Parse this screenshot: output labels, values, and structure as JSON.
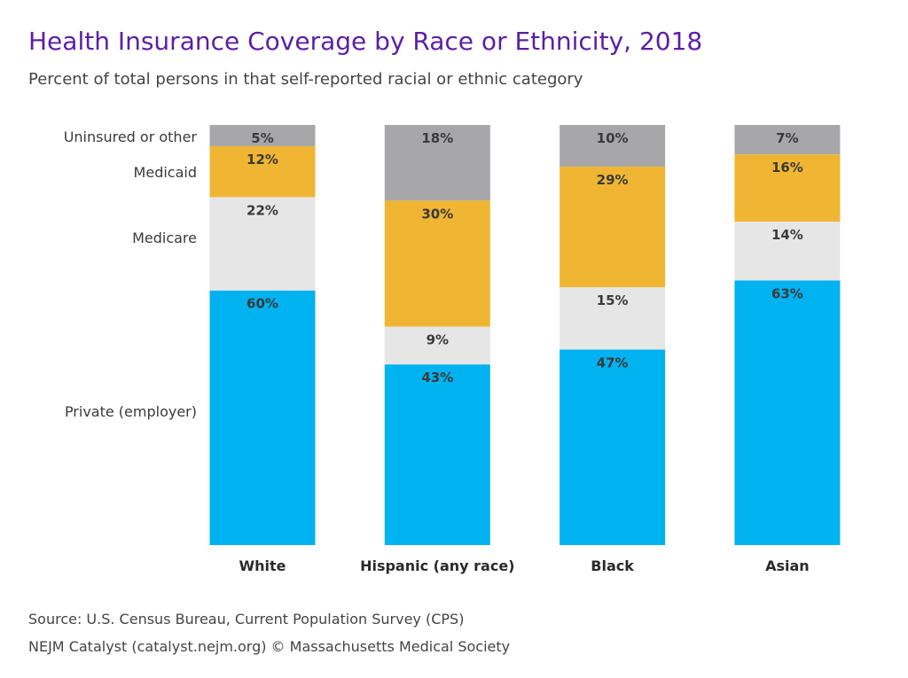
{
  "header": {
    "title": "Health Insurance Coverage by Race or Ethnicity, 2018",
    "subtitle": "Percent of total persons in that self-reported racial or ethnic category"
  },
  "footer": {
    "source": "Source: U.S. Census Bureau, Current Population Survey (CPS)",
    "credit": "NEJM Catalyst (catalyst.nejm.org) © Massachusetts Medical Society"
  },
  "chart_data": {
    "type": "bar",
    "stacked": true,
    "title": "Health Insurance Coverage by Race or Ethnicity, 2018",
    "subtitle": "Percent of total persons in that self-reported racial or ethnic category",
    "categories": [
      "White",
      "Hispanic (any race)",
      "Black",
      "Asian"
    ],
    "series": [
      {
        "name": "Private (employer)",
        "color": "#00b2f0",
        "values": [
          60,
          43,
          47,
          63
        ]
      },
      {
        "name": "Medicare",
        "color": "#e6e6e6",
        "values": [
          22,
          9,
          15,
          14
        ]
      },
      {
        "name": "Medicaid",
        "color": "#f0b532",
        "values": [
          12,
          30,
          29,
          16
        ]
      },
      {
        "name": "Uninsured or other",
        "color": "#a7a7a9",
        "values": [
          5,
          18,
          10,
          7
        ]
      }
    ],
    "value_suffix": "%",
    "ylim": [
      0,
      100
    ],
    "legend_placement": "left",
    "grid": false
  }
}
